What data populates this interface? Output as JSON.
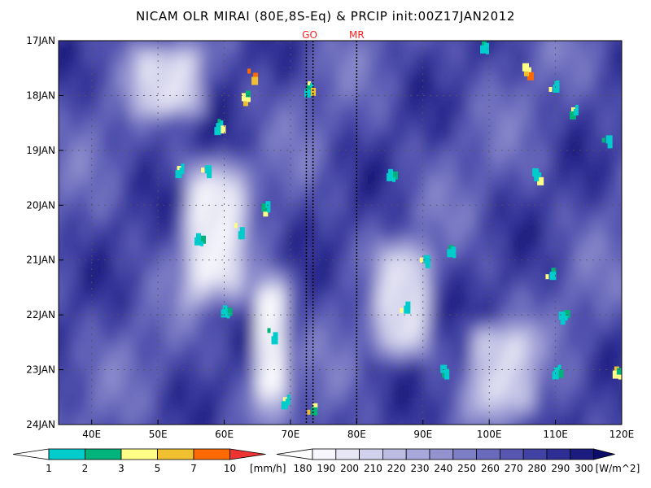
{
  "chart_data": {
    "type": "heatmap",
    "title": "NICAM OLR MIRAI (80E,8S-Eq) & PRCIP init:00Z17JAN2012",
    "xlabel": "",
    "ylabel": "",
    "x_range": [
      35,
      120
    ],
    "x_ticks": [
      "40E",
      "50E",
      "60E",
      "70E",
      "80E",
      "90E",
      "100E",
      "110E",
      "120E"
    ],
    "x_tick_values": [
      40,
      50,
      60,
      70,
      80,
      90,
      100,
      110,
      120
    ],
    "y_range": [
      "17JAN",
      "24JAN"
    ],
    "y_ticks": [
      "17JAN",
      "18JAN",
      "19JAN",
      "20JAN",
      "21JAN",
      "22JAN",
      "23JAN",
      "24JAN"
    ],
    "y_tick_values": [
      0,
      1,
      2,
      3,
      4,
      5,
      6,
      7
    ],
    "grid": true,
    "markers": [
      {
        "label": "GO",
        "lon": [
          72.4,
          73.4
        ]
      },
      {
        "label": "MR",
        "lon": [
          80.0
        ]
      }
    ],
    "precip_legend": {
      "unit": "[mm/h]",
      "levels": [
        "1",
        "2",
        "3",
        "5",
        "7",
        "10"
      ],
      "colors": [
        "#00cccc",
        "#00b37a",
        "#ffff88",
        "#f0c030",
        "#ff6a00",
        "#ee3333"
      ]
    },
    "olr_legend": {
      "unit": "[W/m^2]",
      "levels": [
        "180",
        "190",
        "200",
        "210",
        "220",
        "230",
        "240",
        "250",
        "260",
        "270",
        "280",
        "290",
        "300"
      ],
      "colors": [
        "#f6f6fc",
        "#e6e6f4",
        "#d2d2ec",
        "#bdbde3",
        "#a8a8da",
        "#9393d0",
        "#7e7ec6",
        "#6a6abc",
        "#5757b2",
        "#4242a4",
        "#2e2e94",
        "#1c1c80",
        "#0c0c6a"
      ]
    },
    "features": {
      "description_free": true,
      "olr_low_bands": [
        {
          "lon_start": 45,
          "lon_end": 58,
          "day_start": 0,
          "day_end": 1.5,
          "olr": 200
        },
        {
          "lon_start": 53,
          "lon_end": 64,
          "day_start": 2,
          "day_end": 5,
          "olr": 190
        },
        {
          "lon_start": 64,
          "lon_end": 70,
          "day_start": 4,
          "day_end": 7,
          "olr": 185
        },
        {
          "lon_start": 82,
          "lon_end": 92,
          "day_start": 3.5,
          "day_end": 6,
          "olr": 200
        },
        {
          "lon_start": 96,
          "lon_end": 108,
          "day_start": 5,
          "day_end": 7,
          "olr": 205
        }
      ],
      "precip_cells": [
        {
          "lon": 64.0,
          "day": 0.6,
          "mmh": 9
        },
        {
          "lon": 63.0,
          "day": 1.0,
          "mmh": 6
        },
        {
          "lon": 59.0,
          "day": 1.5,
          "mmh": 4
        },
        {
          "lon": 57.0,
          "day": 2.3,
          "mmh": 3
        },
        {
          "lon": 53.0,
          "day": 2.3,
          "mmh": 3
        },
        {
          "lon": 56.0,
          "day": 3.6,
          "mmh": 2
        },
        {
          "lon": 62.0,
          "day": 3.4,
          "mmh": 3
        },
        {
          "lon": 66.0,
          "day": 3.0,
          "mmh": 4
        },
        {
          "lon": 72.6,
          "day": 0.8,
          "mmh": 5
        },
        {
          "lon": 73.0,
          "day": 6.7,
          "mmh": 5
        },
        {
          "lon": 69.0,
          "day": 6.5,
          "mmh": 3
        },
        {
          "lon": 60.0,
          "day": 4.9,
          "mmh": 2
        },
        {
          "lon": 67.0,
          "day": 5.3,
          "mmh": 2
        },
        {
          "lon": 99.0,
          "day": 0.1,
          "mmh": 2
        },
        {
          "lon": 105.5,
          "day": 0.5,
          "mmh": 8
        },
        {
          "lon": 109.5,
          "day": 0.8,
          "mmh": 3
        },
        {
          "lon": 112.5,
          "day": 1.2,
          "mmh": 4
        },
        {
          "lon": 85.0,
          "day": 2.4,
          "mmh": 2
        },
        {
          "lon": 90.0,
          "day": 4.0,
          "mmh": 3
        },
        {
          "lon": 94.0,
          "day": 3.8,
          "mmh": 2
        },
        {
          "lon": 107.0,
          "day": 2.4,
          "mmh": 3
        },
        {
          "lon": 109.0,
          "day": 4.2,
          "mmh": 4
        },
        {
          "lon": 93.0,
          "day": 6.0,
          "mmh": 2
        },
        {
          "lon": 110.0,
          "day": 6.0,
          "mmh": 2
        },
        {
          "lon": 117.5,
          "day": 1.8,
          "mmh": 2
        },
        {
          "lon": 119.0,
          "day": 6.0,
          "mmh": 6
        },
        {
          "lon": 111.0,
          "day": 5.0,
          "mmh": 2
        },
        {
          "lon": 87.0,
          "day": 4.8,
          "mmh": 3
        }
      ]
    }
  }
}
